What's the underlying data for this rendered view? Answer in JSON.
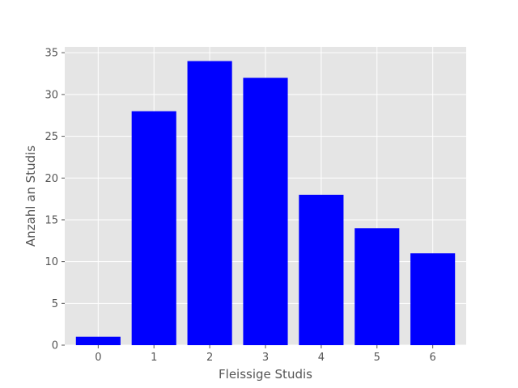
{
  "chart_data": {
    "type": "bar",
    "categories": [
      "0",
      "1",
      "2",
      "3",
      "4",
      "5",
      "6"
    ],
    "values": [
      1,
      28,
      34,
      32,
      18,
      14,
      11
    ],
    "title": "",
    "xlabel": "Fleissige Studis",
    "ylabel": "Anzahl an Studis",
    "ylim": [
      0,
      35.7
    ],
    "yticks": [
      0,
      5,
      10,
      15,
      20,
      25,
      30,
      35
    ],
    "grid": true,
    "colors": {
      "bar": "#0000ff",
      "plot_background": "#e5e5e5",
      "grid": "#ffffff",
      "text": "#555555"
    }
  }
}
